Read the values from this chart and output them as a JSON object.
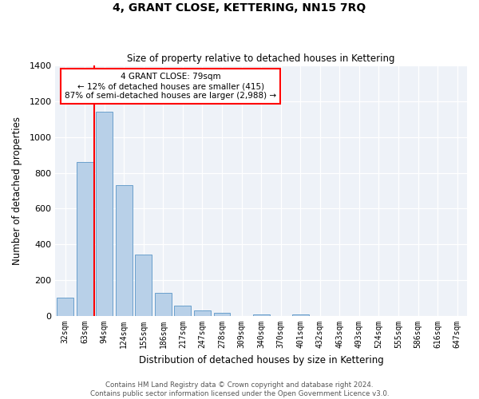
{
  "title": "4, GRANT CLOSE, KETTERING, NN15 7RQ",
  "subtitle": "Size of property relative to detached houses in Kettering",
  "xlabel": "Distribution of detached houses by size in Kettering",
  "ylabel": "Number of detached properties",
  "categories": [
    "32sqm",
    "63sqm",
    "94sqm",
    "124sqm",
    "155sqm",
    "186sqm",
    "217sqm",
    "247sqm",
    "278sqm",
    "309sqm",
    "340sqm",
    "370sqm",
    "401sqm",
    "432sqm",
    "463sqm",
    "493sqm",
    "524sqm",
    "555sqm",
    "586sqm",
    "616sqm",
    "647sqm"
  ],
  "values": [
    105,
    860,
    1140,
    730,
    345,
    128,
    60,
    30,
    17,
    0,
    8,
    0,
    7,
    0,
    0,
    0,
    0,
    0,
    0,
    0,
    0
  ],
  "bar_color": "#b8d0e8",
  "bar_edge_color": "#6aa0cc",
  "red_line_index": 1.5,
  "annotation_title": "4 GRANT CLOSE: 79sqm",
  "annotation_line1": "← 12% of detached houses are smaller (415)",
  "annotation_line2": "87% of semi-detached houses are larger (2,988) →",
  "ylim": [
    0,
    1400
  ],
  "yticks": [
    0,
    200,
    400,
    600,
    800,
    1000,
    1200,
    1400
  ],
  "bg_color": "#eef2f8",
  "grid_color": "#ffffff",
  "footnote1": "Contains HM Land Registry data © Crown copyright and database right 2024.",
  "footnote2": "Contains public sector information licensed under the Open Government Licence v3.0."
}
